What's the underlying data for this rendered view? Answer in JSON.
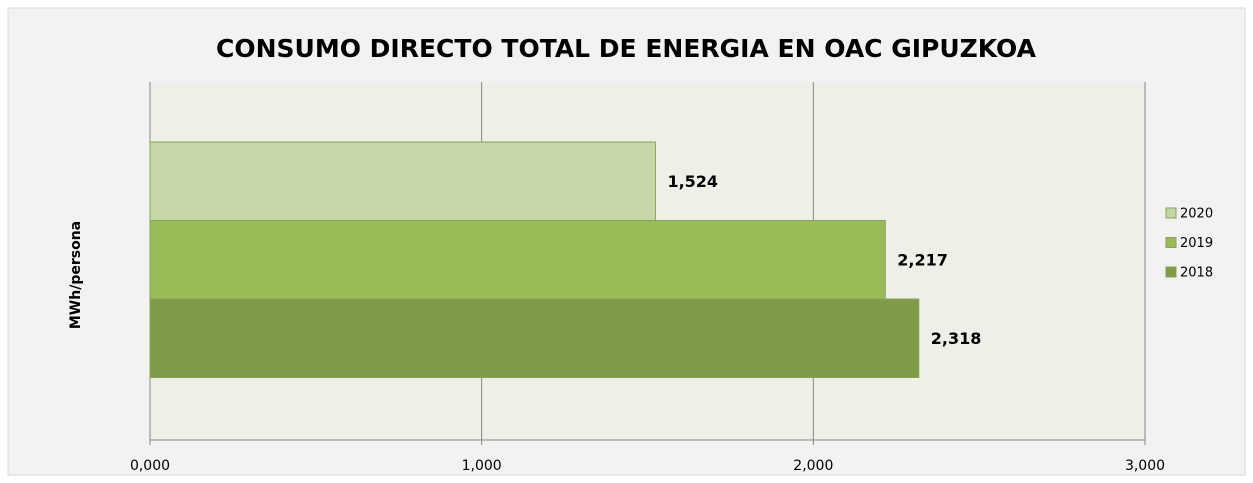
{
  "chart_data": {
    "type": "bar",
    "orientation": "horizontal",
    "title": "CONSUMO DIRECTO TOTAL DE ENERGIA EN OAC GIPUZKOA",
    "y_label": "MWh/persona",
    "categories": [
      null
    ],
    "series": [
      {
        "name": "2020",
        "color": "#c6d6a8",
        "values": [
          1.524
        ],
        "value_labels": [
          "1,524"
        ]
      },
      {
        "name": "2019",
        "color": "#9bbb59",
        "values": [
          2.217
        ],
        "value_labels": [
          "2,217"
        ]
      },
      {
        "name": "2018",
        "color": "#7f9a48",
        "values": [
          2.318
        ],
        "value_labels": [
          "2,318"
        ]
      }
    ],
    "xlim": [
      0,
      3
    ],
    "xticks": [
      {
        "value": 0,
        "label": "0,000"
      },
      {
        "value": 1,
        "label": "1,000"
      },
      {
        "value": 2,
        "label": "2,000"
      },
      {
        "value": 3,
        "label": "3,000"
      }
    ],
    "grid": true,
    "legend": "right"
  }
}
